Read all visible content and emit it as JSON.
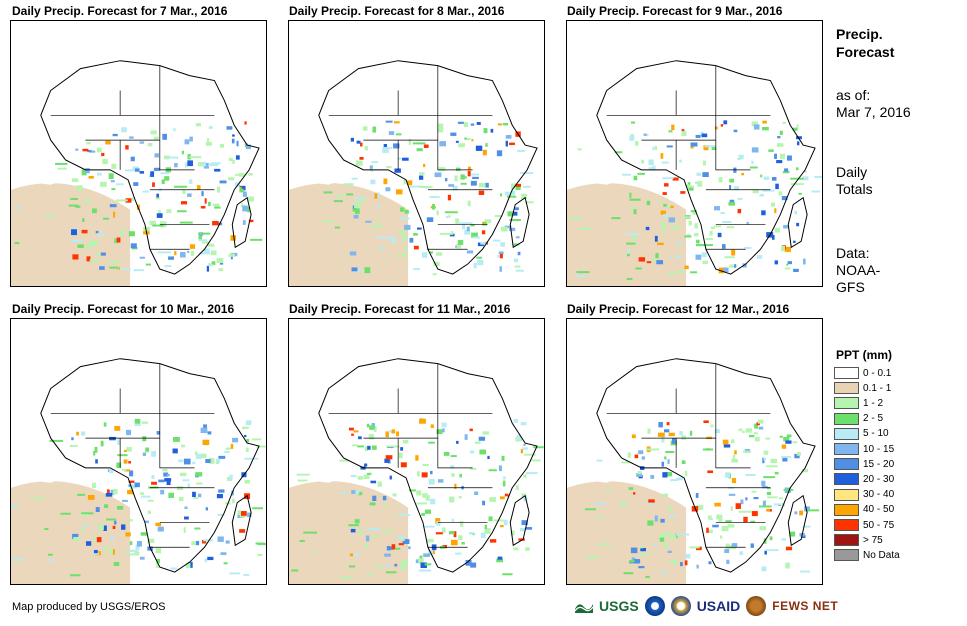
{
  "panels": [
    {
      "title": "Daily Precip. Forecast for 7 Mar., 2016"
    },
    {
      "title": "Daily Precip. Forecast for 8 Mar., 2016"
    },
    {
      "title": "Daily Precip. Forecast for 9 Mar., 2016"
    },
    {
      "title": "Daily Precip. Forecast for 10 Mar., 2016"
    },
    {
      "title": "Daily Precip. Forecast for 11 Mar., 2016"
    },
    {
      "title": "Daily Precip. Forecast for 12 Mar., 2016"
    }
  ],
  "sidebar": {
    "title_line1": "Precip.",
    "title_line2": "Forecast",
    "asof_line1": "as of:",
    "asof_line2": "Mar 7, 2016",
    "daily_line1": "Daily",
    "daily_line2": "Totals",
    "data_line1": "Data:",
    "data_line2": "NOAA-",
    "data_line3": "GFS"
  },
  "legend": {
    "title": "PPT (mm)",
    "items": [
      {
        "label": "0 - 0.1",
        "color": "#ffffff"
      },
      {
        "label": "0.1 - 1",
        "color": "#e8d3b5"
      },
      {
        "label": "1 - 2",
        "color": "#b6f5b0"
      },
      {
        "label": "2 - 5",
        "color": "#6be06b"
      },
      {
        "label": "5 - 10",
        "color": "#b7ecf4"
      },
      {
        "label": "10 - 15",
        "color": "#7fb6ee"
      },
      {
        "label": "15 - 20",
        "color": "#4f8fe6"
      },
      {
        "label": "20 - 30",
        "color": "#1f5fdd"
      },
      {
        "label": "30 - 40",
        "color": "#ffe680"
      },
      {
        "label": "40 - 50",
        "color": "#ffa500"
      },
      {
        "label": "50 - 75",
        "color": "#ff3300"
      },
      {
        "label": "> 75",
        "color": "#a01414"
      },
      {
        "label": "No Data",
        "color": "#999999"
      }
    ]
  },
  "footer": {
    "credit": "Map produced by USGS/EROS"
  },
  "logos": {
    "usgs": "USGS",
    "usaid": "USAID",
    "fewsnet": "FEWS NET"
  }
}
